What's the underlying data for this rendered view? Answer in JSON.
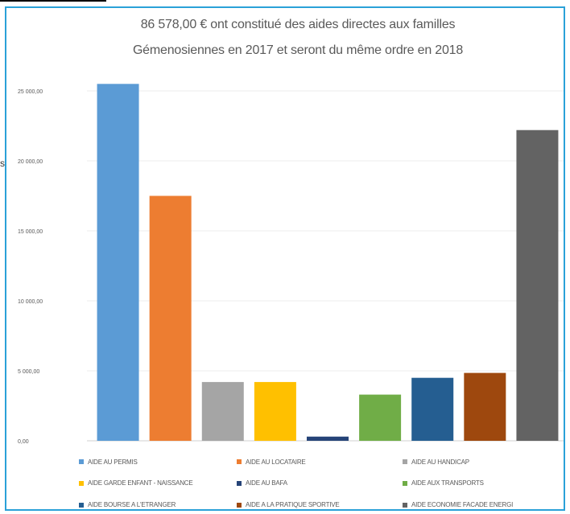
{
  "page": {
    "edge_glyph": "s"
  },
  "chart_data": {
    "type": "bar",
    "title_line1": "86 578,00 € ont constitué des aides directes aux familles",
    "title_line2": "Gémenosiennes en 2017 et seront du même ordre en 2018",
    "ylim": [
      0,
      25000
    ],
    "yticks": [
      "0,00",
      "5 000,00",
      "10 000,00",
      "15 000,00",
      "20 000,00",
      "25 000,00"
    ],
    "grid": true,
    "legend_position": "bottom",
    "categories": [
      "AIDE AU PERMIS",
      "AIDE AU LOCATAIRE",
      "AIDE AU HANDICAP",
      "AIDE GARDE ENFANT - NAISSANCE",
      "AIDE AU BAFA",
      "AIDE AUX TRANSPORTS",
      "AIDE BOURSE A L'ETRANGER",
      "AIDE A LA PRATIQUE SPORTIVE",
      "AIDE ECONOMIE FACADE ENERGI"
    ],
    "values": [
      25500,
      17500,
      4200,
      4200,
      300,
      3300,
      4500,
      4850,
      22200
    ],
    "colors": [
      "#5b9bd5",
      "#ed7d31",
      "#a5a5a5",
      "#ffc000",
      "#264478",
      "#70ad47",
      "#255e91",
      "#9e480e",
      "#636363"
    ]
  }
}
